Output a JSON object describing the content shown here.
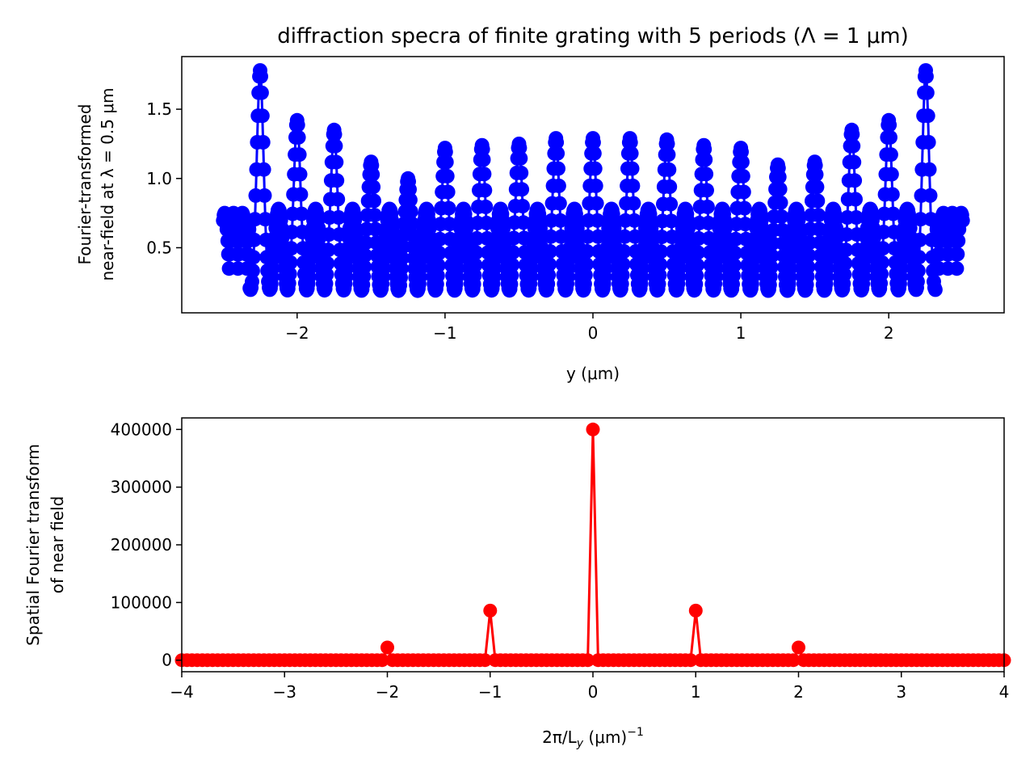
{
  "chart_data": [
    {
      "type": "line",
      "title": "diffraction specra of finite grating with 5 periods (Λ = 1 μm)",
      "xlabel": "y (μm)",
      "ylabel": [
        "Fourier-transformed",
        "near-field at λ = 0.5 μm"
      ],
      "xlim": [
        -2.78,
        2.78
      ],
      "ylim": [
        0.03,
        1.88
      ],
      "xticks": [
        -2,
        -1,
        0,
        1,
        2
      ],
      "xtick_labels": [
        "−2",
        "−1",
        "0",
        "1",
        "2"
      ],
      "yticks": [
        0.5,
        1.0,
        1.5
      ],
      "ytick_labels": [
        "0.5",
        "1.0",
        "1.5"
      ],
      "grid": false,
      "series": [
        {
          "color": "#0000ff",
          "marker": "circle",
          "envelope_peaks": [
            {
              "x": -2.25,
              "y": 1.78
            },
            {
              "x": -2.0,
              "y": 1.42
            },
            {
              "x": -1.75,
              "y": 1.35
            },
            {
              "x": -1.5,
              "y": 1.12
            },
            {
              "x": -1.25,
              "y": 1.0
            },
            {
              "x": -1.0,
              "y": 1.22
            },
            {
              "x": -0.75,
              "y": 1.24
            },
            {
              "x": -0.5,
              "y": 1.25
            },
            {
              "x": -0.25,
              "y": 1.29
            },
            {
              "x": 0.0,
              "y": 1.29
            },
            {
              "x": 0.25,
              "y": 1.29
            },
            {
              "x": 0.5,
              "y": 1.28
            },
            {
              "x": 0.75,
              "y": 1.24
            },
            {
              "x": 1.0,
              "y": 1.22
            },
            {
              "x": 1.25,
              "y": 1.1
            },
            {
              "x": 1.5,
              "y": 1.12
            },
            {
              "x": 1.75,
              "y": 1.35
            },
            {
              "x": 2.0,
              "y": 1.42
            },
            {
              "x": 2.25,
              "y": 1.78
            }
          ],
          "x_range": [
            -2.5,
            2.5
          ],
          "min_value": 0.13,
          "edge_value": 0.35
        }
      ]
    },
    {
      "type": "line",
      "xlabel": "2π/L_y (μm)^−1",
      "ylabel": [
        "Spatial Fourier transform",
        "of near field"
      ],
      "xlim": [
        -4,
        4
      ],
      "ylim": [
        -20000,
        420000
      ],
      "xticks": [
        -4,
        -3,
        -2,
        -1,
        0,
        1,
        2,
        3,
        4
      ],
      "xtick_labels": [
        "−4",
        "−3",
        "−2",
        "−1",
        "0",
        "1",
        "2",
        "3",
        "4"
      ],
      "yticks": [
        0,
        100000,
        200000,
        300000,
        400000
      ],
      "ytick_labels": [
        "0",
        "100000",
        "200000",
        "300000",
        "400000"
      ],
      "grid": false,
      "series": [
        {
          "color": "#ff0000",
          "marker": "circle",
          "peaks": [
            {
              "x": -2,
              "y": 22000
            },
            {
              "x": -1,
              "y": 86000
            },
            {
              "x": 0,
              "y": 400000
            },
            {
              "x": 1,
              "y": 86000
            },
            {
              "x": 2,
              "y": 22000
            }
          ],
          "x_range": [
            -4,
            4
          ],
          "step": 0.05
        }
      ]
    }
  ]
}
